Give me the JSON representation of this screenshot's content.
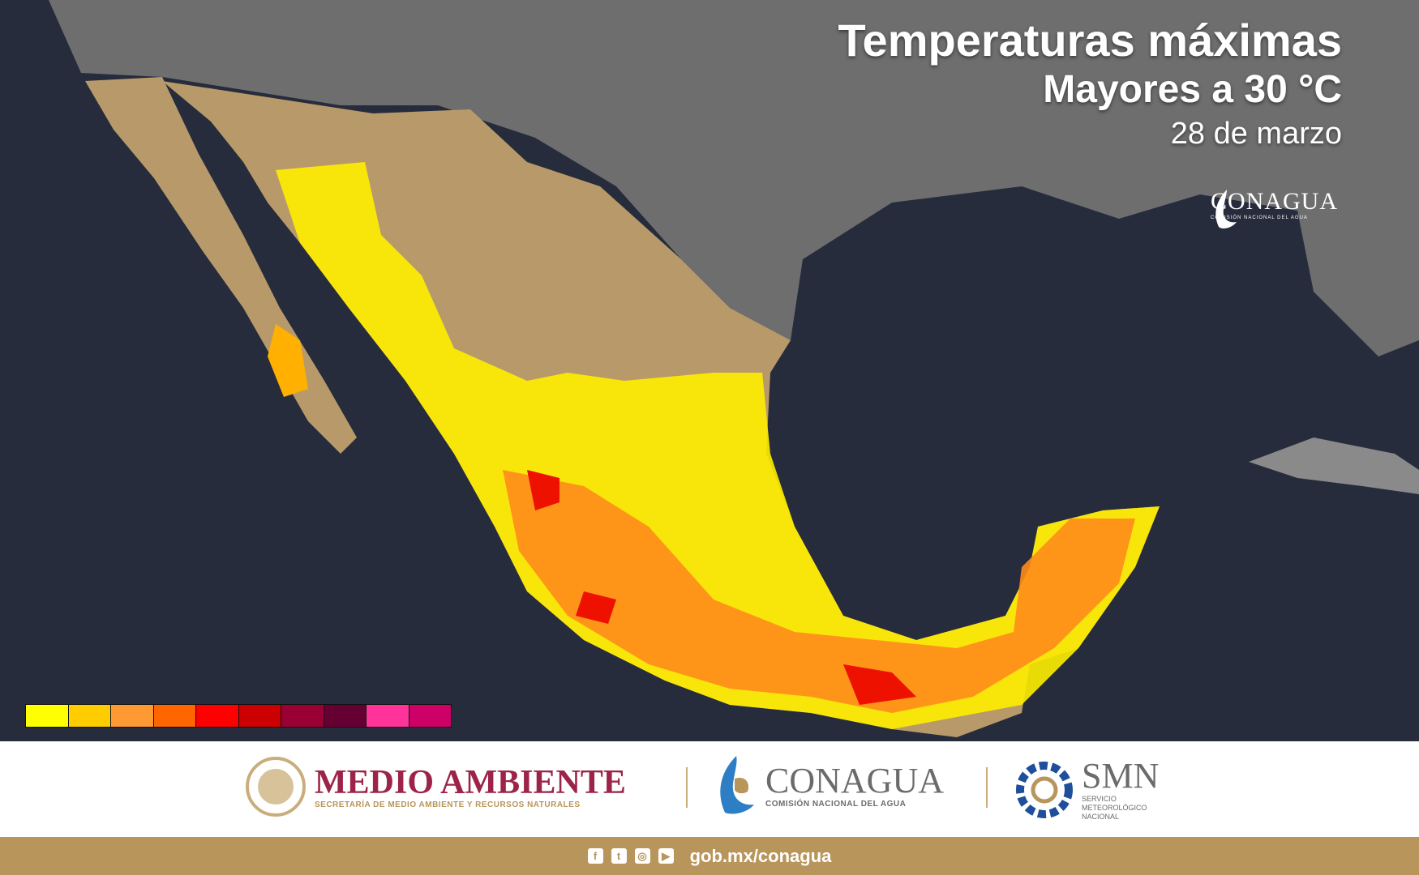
{
  "title": {
    "line1": "Temperaturas máximas",
    "line2": "Mayores a 30 °C",
    "date": "28 de marzo"
  },
  "map_logo": {
    "name": "CONAGUA",
    "subtitle": "COMISIÓN NACIONAL DEL AGUA"
  },
  "legend": {
    "colors": [
      "#ffff00",
      "#ffcc00",
      "#ff9933",
      "#ff6600",
      "#ff0000",
      "#cc0000",
      "#990033",
      "#660033",
      "#ff3399",
      "#cc0066"
    ]
  },
  "colors": {
    "land": "#b89a6a",
    "sea": "#262c3c",
    "usa": "#7a7a7a",
    "footer_gold": "#b8955a",
    "medio_ambiente": "#9d2449"
  },
  "footer": {
    "medio_ambiente": {
      "name": "MEDIO AMBIENTE",
      "subtitle": "SECRETARÍA DE MEDIO AMBIENTE Y RECURSOS NATURALES"
    },
    "conagua": {
      "name": "CONAGUA",
      "subtitle": "COMISIÓN NACIONAL DEL AGUA"
    },
    "smn": {
      "name": "SMN",
      "subtitle": "SERVICIO METEOROLÓGICO NACIONAL"
    },
    "social_icons": [
      "facebook-icon",
      "twitter-icon",
      "instagram-icon",
      "youtube-icon"
    ],
    "url": "gob.mx/conagua"
  }
}
